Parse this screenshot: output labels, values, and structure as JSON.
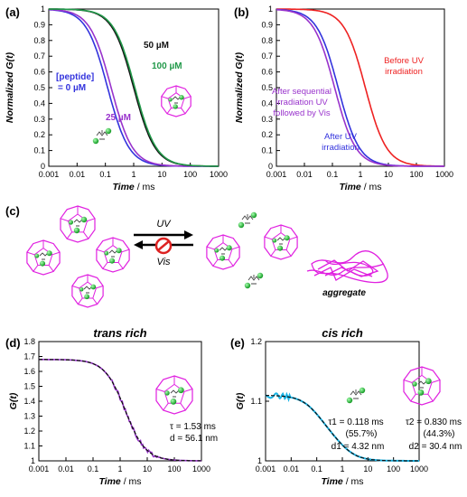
{
  "figure": {
    "panels": {
      "a": {
        "label": "(a)"
      },
      "b": {
        "label": "(b)"
      },
      "c": {
        "label": "(c)"
      },
      "d": {
        "label": "(d)"
      },
      "e": {
        "label": "(e)"
      }
    },
    "colors": {
      "magenta": "#e020e0",
      "green_sphere": "#22cc33",
      "red": "#ee2222",
      "blue": "#3333dd",
      "purple": "#9933cc",
      "green": "#22994a",
      "black": "#111111",
      "cyan": "#19b4e6"
    },
    "scheme": {
      "arrow_top_label": "UV",
      "arrow_bottom_label": "Vis",
      "aggregate_label": "aggregate"
    }
  },
  "chart_data": [
    {
      "id": "a",
      "type": "line",
      "xscale": "log",
      "xlim": [
        0.001,
        1000
      ],
      "ylim": [
        0,
        1
      ],
      "xticks": [
        "0.001",
        "0.01",
        "0.1",
        "1",
        "10",
        "100",
        "1000"
      ],
      "yticks": [
        "0",
        "0.1",
        "0.2",
        "0.3",
        "0.4",
        "0.5",
        "0.6",
        "0.7",
        "0.8",
        "0.9",
        "1"
      ],
      "xlabel_italic": "Time",
      "xlabel_unit": " / ms",
      "ylabel": "Normalized G(t)",
      "series": [
        {
          "name": "[peptide] = 0 µM",
          "color": "#3333dd",
          "tau": 0.12
        },
        {
          "name": "25 µM",
          "color": "#9933cc",
          "tau": 0.16
        },
        {
          "name": "50 µM",
          "color": "#111111",
          "tau": 1.0
        },
        {
          "name": "100 µM",
          "color": "#22994a",
          "tau": 1.1
        }
      ],
      "annotations": [
        {
          "text": "[peptide]",
          "color": "#3333dd"
        },
        {
          "text": "= 0 µM",
          "color": "#3333dd"
        },
        {
          "text": "25 µM",
          "color": "#9933cc"
        },
        {
          "text": "50 µM",
          "color": "#111111"
        },
        {
          "text": "100 µM",
          "color": "#22994a"
        }
      ]
    },
    {
      "id": "b",
      "type": "line",
      "xscale": "log",
      "xlim": [
        0.001,
        1000
      ],
      "ylim": [
        0,
        1
      ],
      "xticks": [
        "0.001",
        "0.01",
        "0.1",
        "1",
        "10",
        "100",
        "1000"
      ],
      "yticks": [
        "0",
        "0.1",
        "0.2",
        "0.3",
        "0.4",
        "0.5",
        "0.6",
        "0.7",
        "0.8",
        "0.9",
        "1"
      ],
      "xlabel_italic": "Time",
      "xlabel_unit": " / ms",
      "ylabel": "Normalized G(t)",
      "series": [
        {
          "name": "Before UV irradiation",
          "color": "#ee2222",
          "tau": 1.5
        },
        {
          "name": "After UV irradiation",
          "color": "#3333dd",
          "tau": 0.16
        },
        {
          "name": "After sequential irradiation UV followed by Vis",
          "color": "#9933cc",
          "tau": 0.12
        }
      ],
      "annotations": [
        {
          "text": "Before UV",
          "color": "#ee2222"
        },
        {
          "text": "irradiation",
          "color": "#ee2222"
        },
        {
          "text": "After sequential",
          "color": "#9933cc"
        },
        {
          "text": "irradiation UV",
          "color": "#9933cc"
        },
        {
          "text": "followed by Vis",
          "color": "#9933cc"
        },
        {
          "text": "After UV",
          "color": "#3333dd"
        },
        {
          "text": "irradiation",
          "color": "#3333dd"
        }
      ]
    },
    {
      "id": "d",
      "type": "line",
      "title": "trans rich",
      "xscale": "log",
      "xlim": [
        0.001,
        1000
      ],
      "ylim": [
        1,
        1.8
      ],
      "xticks": [
        "0.001",
        "0.01",
        "0.1",
        "1",
        "10",
        "100",
        "1000"
      ],
      "yticks": [
        "1",
        "1.1",
        "1.2",
        "1.3",
        "1.4",
        "1.5",
        "1.6",
        "1.7",
        "1.8"
      ],
      "xlabel_italic": "Time",
      "xlabel_unit": " / ms",
      "ylabel": "G(t)",
      "fit": {
        "tau": 1.53,
        "amp": 0.68
      },
      "annotations": [
        "τ = 1.53 ms",
        "d = 56.1 nm"
      ]
    },
    {
      "id": "e",
      "type": "line",
      "title": "cis rich",
      "xscale": "log",
      "xlim": [
        0.001,
        1000
      ],
      "ylim": [
        1,
        1.2
      ],
      "xticks": [
        "0.001",
        "0.01",
        "0.1",
        "1",
        "10",
        "100",
        "1000"
      ],
      "yticks": [
        "1",
        "1.1",
        "1.2"
      ],
      "xlabel_italic": "Time",
      "xlabel_unit": " / ms",
      "ylabel": "G(t)",
      "fit": {
        "tau1": 0.118,
        "frac1": 0.557,
        "tau2": 0.83,
        "frac2": 0.443,
        "amp": 0.11
      },
      "annotations": [
        "τ1 = 0.118 ms",
        "(55.7%)",
        "d1 = 4.32 nm",
        "τ2 = 0.830 ms",
        "(44.3%)",
        "d2 = 30.4 nm"
      ]
    }
  ]
}
